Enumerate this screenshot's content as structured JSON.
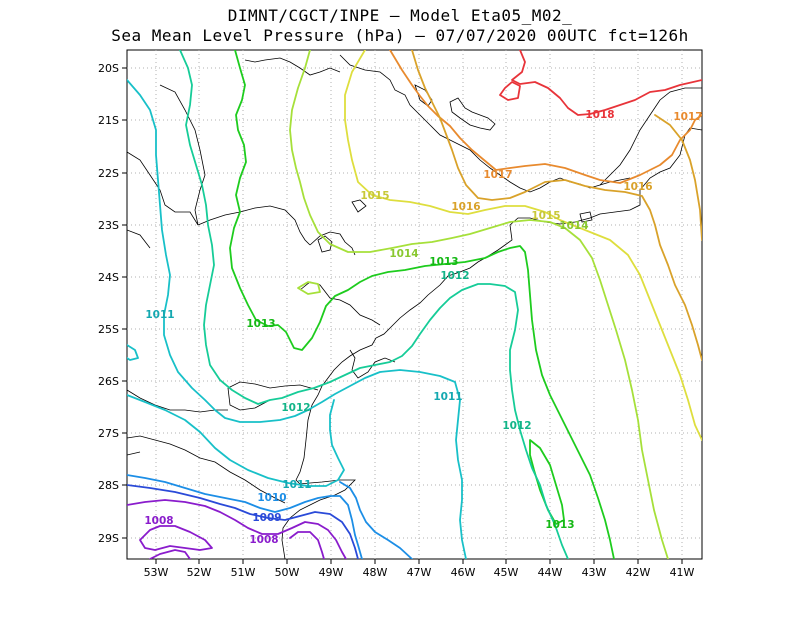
{
  "title_line1": "DIMNT/CGCT/INPE –  Model Eta05_M02_",
  "title_line2": "Sea Mean Level Pressure (hPa) – 07/07/2020 00UTC fct=126h",
  "lat_labels": [
    "20S",
    "21S",
    "22S",
    "23S",
    "24S",
    "25S",
    "26S",
    "27S",
    "28S",
    "29S"
  ],
  "lon_labels": [
    "53W",
    "52W",
    "51W",
    "50W",
    "49W",
    "48W",
    "47W",
    "46W",
    "45W",
    "44W",
    "43W",
    "42W",
    "41W"
  ],
  "contour_labels": {
    "l1018": "1018",
    "l1017a": "1017",
    "l1017b": "1017",
    "l1016a": "1016",
    "l1016b": "1016",
    "l1015a": "1015",
    "l1015b": "1015",
    "l1014a": "1014",
    "l1014b": "1014",
    "l1013a": "1013",
    "l1013b": "1013",
    "l1013c": "1013",
    "l1012a": "1012",
    "l1012b": "1012",
    "l1012c": "1012",
    "l1011a": "1011",
    "l1011b": "1011",
    "l1011c": "1011",
    "l1010": "1010",
    "l1009": "1009",
    "l1008a": "1008",
    "l1008b": "1008"
  },
  "colors": {
    "c1018": "#e8343a",
    "c1017": "#e88a2e",
    "c1016": "#d9a22a",
    "c1015": "#dede3e",
    "c1014": "#a6e03a",
    "c1013": "#1ecc1e",
    "c1012": "#16cc98",
    "c1011": "#18c0c8",
    "c1010": "#1c8ee6",
    "c1009": "#2a4ad8",
    "c1008": "#8a1ccc",
    "c1007": "#8a1ccc",
    "coast": "#000000",
    "grid": "#b0b0b0"
  }
}
